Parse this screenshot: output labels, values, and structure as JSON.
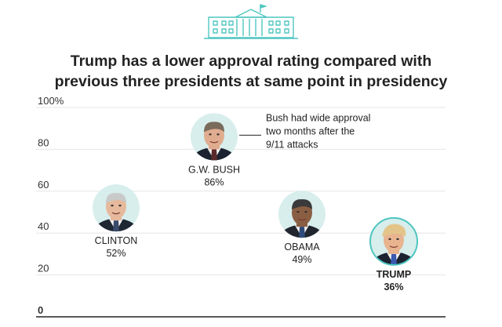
{
  "header": {
    "icon": "white-house-icon",
    "icon_color": "#4fc6c0"
  },
  "chart_data": {
    "type": "scatter",
    "title_lines": [
      "Trump has a lower approval rating compared with",
      "previous three presidents at same point in presidency"
    ],
    "xlabel": "",
    "ylabel": "",
    "ylim": [
      0,
      100
    ],
    "yticks": [
      0,
      20,
      40,
      60,
      80,
      100
    ],
    "ytick_labels": [
      "0",
      "20",
      "40",
      "60",
      "80",
      "100%"
    ],
    "grid": true,
    "points": [
      {
        "name": "CLINTON",
        "value": 52,
        "label": "52%",
        "highlight": false,
        "portrait": "clinton-portrait"
      },
      {
        "name": "G.W. BUSH",
        "value": 86,
        "label": "86%",
        "highlight": false,
        "portrait": "bush-portrait"
      },
      {
        "name": "OBAMA",
        "value": 49,
        "label": "49%",
        "highlight": false,
        "portrait": "obama-portrait"
      },
      {
        "name": "TRUMP",
        "value": 36,
        "label": "36%",
        "highlight": true,
        "portrait": "trump-portrait"
      }
    ],
    "annotation": {
      "target": "G.W. BUSH",
      "lines": [
        "Bush had wide approval",
        "two months after the",
        "9/11 attacks"
      ]
    },
    "colors": {
      "portrait_bg": "#d7eeec",
      "highlight_ring": "#4fc6c0",
      "grid": "#e6e6e6",
      "text": "#222222"
    }
  }
}
